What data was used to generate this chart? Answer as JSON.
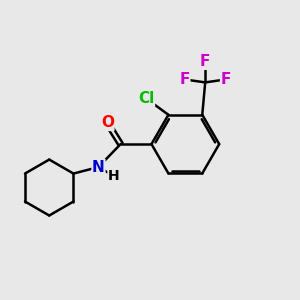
{
  "background_color": "#e8e8e8",
  "bond_color": "#000000",
  "bond_width": 1.8,
  "atom_colors": {
    "O": "#ff0000",
    "N": "#0000cc",
    "Cl": "#00bb00",
    "F": "#cc00cc"
  },
  "font_size": 11,
  "fig_size": [
    3.0,
    3.0
  ],
  "dpi": 100,
  "xlim": [
    0,
    10
  ],
  "ylim": [
    0,
    10
  ]
}
